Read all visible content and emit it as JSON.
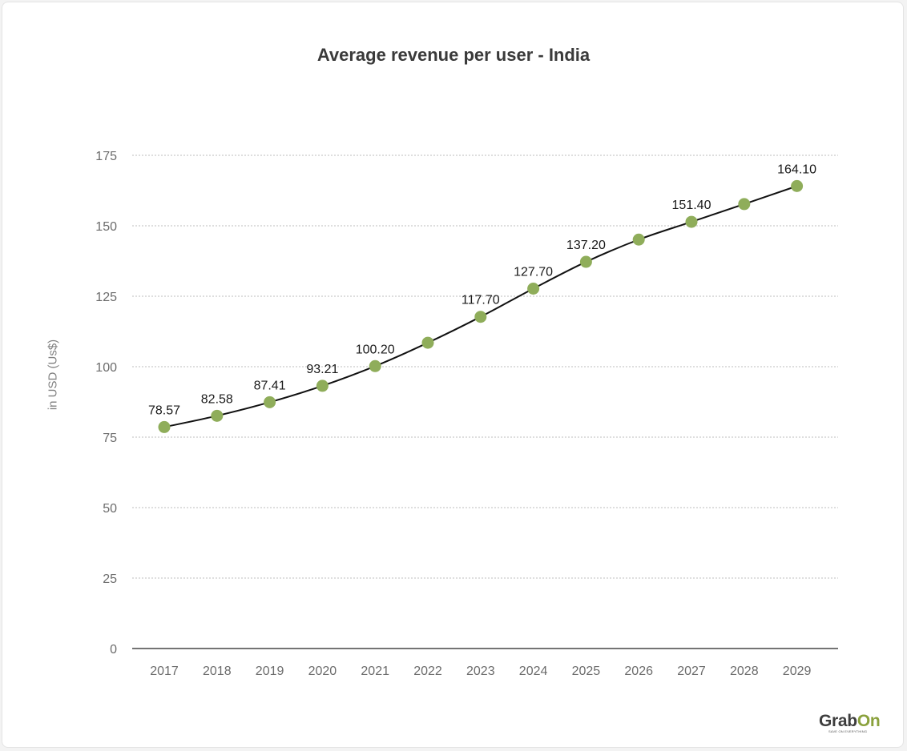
{
  "chart_data": {
    "type": "line",
    "title": "Average revenue per user - India",
    "ylabel": "in USD (Us$)",
    "xlabel": "",
    "ylim": [
      0,
      175
    ],
    "yticks": [
      0,
      25,
      50,
      75,
      100,
      125,
      150,
      175
    ],
    "ytick_labels": [
      "0",
      "25",
      "50",
      "75",
      "100",
      "125",
      "150",
      "175"
    ],
    "grid": true,
    "categories": [
      "2017",
      "2018",
      "2019",
      "2020",
      "2021",
      "2022",
      "2023",
      "2024",
      "2025",
      "2026",
      "2027",
      "2028",
      "2029"
    ],
    "values": [
      78.57,
      82.58,
      87.41,
      93.21,
      100.2,
      108.5,
      117.7,
      127.7,
      137.2,
      145.1,
      151.4,
      157.7,
      164.1
    ],
    "data_labels": [
      "78.57",
      "82.58",
      "87.41",
      "93.21",
      "100.20",
      "",
      "117.70",
      "127.70",
      "137.20",
      "",
      "151.40",
      "",
      "164.10"
    ],
    "colors": {
      "marker": "#8fad5a",
      "line": "#111111",
      "grid": "#bdbdbd",
      "axis": "#222222"
    }
  },
  "branding": {
    "logo_main": "Grab",
    "logo_accent": "On",
    "tagline": "SAVE ON EVERYTHING"
  }
}
